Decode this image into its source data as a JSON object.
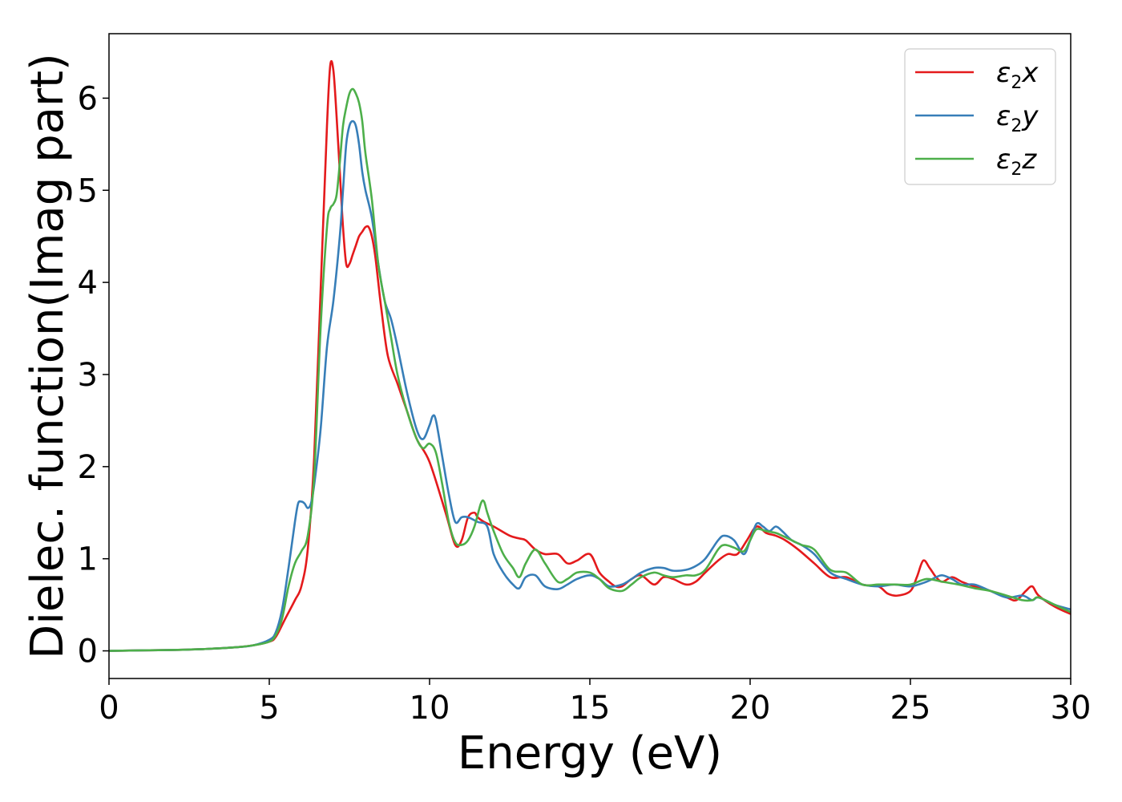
{
  "chart_data": {
    "type": "line",
    "xlabel": "Energy (eV)",
    "ylabel": "Dielec. function(Imag part)",
    "xlim": [
      0,
      30
    ],
    "ylim": [
      -0.3,
      6.7
    ],
    "xticks": [
      0,
      5,
      10,
      15,
      20,
      25,
      30
    ],
    "yticks": [
      0,
      1,
      2,
      3,
      4,
      5,
      6
    ],
    "grid": false,
    "legend_position": "top-right",
    "series": [
      {
        "key": "x",
        "legend": {
          "base": "ε",
          "sub": "2",
          "suffix": "x"
        },
        "color": "#e41a1c",
        "x": [
          0,
          1,
          2,
          3,
          4,
          4.5,
          5,
          5.2,
          5.5,
          5.8,
          6,
          6.2,
          6.4,
          6.6,
          6.8,
          6.9,
          7,
          7.1,
          7.2,
          7.3,
          7.4,
          7.5,
          7.6,
          7.7,
          7.8,
          7.9,
          8,
          8.1,
          8.2,
          8.3,
          8.4,
          8.5,
          8.7,
          9,
          9.3,
          9.6,
          10,
          10.5,
          10.8,
          11,
          11.2,
          11.4,
          11.5,
          11.7,
          12,
          12.5,
          12.8,
          13,
          13.3,
          13.6,
          14,
          14.3,
          14.6,
          15,
          15.3,
          15.6,
          15.8,
          16,
          16.3,
          16.6,
          17,
          17.3,
          17.6,
          18,
          18.3,
          18.6,
          19,
          19.3,
          19.6,
          19.9,
          20.2,
          20.5,
          20.8,
          21.1,
          21.5,
          22,
          22.5,
          23,
          23.5,
          24,
          24.3,
          24.6,
          25,
          25.2,
          25.4,
          25.6,
          25.8,
          26,
          26.3,
          26.6,
          27,
          27.5,
          28,
          28.3,
          28.6,
          28.8,
          29,
          29.5,
          30
        ],
        "y": [
          0,
          0.005,
          0.01,
          0.02,
          0.04,
          0.06,
          0.1,
          0.15,
          0.35,
          0.55,
          0.7,
          1.1,
          2.1,
          3.9,
          5.7,
          6.35,
          6.3,
          5.8,
          5.2,
          4.6,
          4.2,
          4.2,
          4.3,
          4.4,
          4.5,
          4.55,
          4.6,
          4.6,
          4.5,
          4.3,
          4,
          3.7,
          3.2,
          2.9,
          2.6,
          2.3,
          2.05,
          1.5,
          1.15,
          1.2,
          1.45,
          1.5,
          1.45,
          1.4,
          1.35,
          1.25,
          1.22,
          1.2,
          1.1,
          1.05,
          1.05,
          0.95,
          0.98,
          1.05,
          0.85,
          0.75,
          0.7,
          0.7,
          0.78,
          0.82,
          0.72,
          0.8,
          0.78,
          0.72,
          0.75,
          0.85,
          0.98,
          1.05,
          1.05,
          1.2,
          1.35,
          1.28,
          1.25,
          1.2,
          1.1,
          0.95,
          0.8,
          0.8,
          0.72,
          0.7,
          0.62,
          0.6,
          0.65,
          0.8,
          0.98,
          0.9,
          0.8,
          0.75,
          0.8,
          0.75,
          0.7,
          0.65,
          0.58,
          0.55,
          0.65,
          0.7,
          0.6,
          0.48,
          0.4
        ]
      },
      {
        "key": "y",
        "legend": {
          "base": "ε",
          "sub": "2",
          "suffix": "y"
        },
        "color": "#377eb8",
        "x": [
          0,
          1,
          2,
          3,
          4,
          4.5,
          5,
          5.2,
          5.4,
          5.6,
          5.8,
          5.9,
          6,
          6.1,
          6.2,
          6.3,
          6.4,
          6.6,
          6.8,
          7,
          7.2,
          7.3,
          7.4,
          7.5,
          7.6,
          7.7,
          7.8,
          7.9,
          8,
          8.2,
          8.4,
          8.6,
          8.8,
          9,
          9.3,
          9.6,
          9.8,
          10,
          10.1,
          10.2,
          10.4,
          10.6,
          10.8,
          11,
          11.2,
          11.5,
          11.8,
          12,
          12.3,
          12.6,
          12.8,
          13,
          13.3,
          13.6,
          14,
          14.3,
          14.6,
          15,
          15.3,
          15.6,
          16,
          16.3,
          16.6,
          17,
          17.3,
          17.6,
          18,
          18.3,
          18.6,
          19,
          19.2,
          19.5,
          19.8,
          20,
          20.2,
          20.4,
          20.6,
          20.8,
          21,
          21.3,
          21.6,
          22,
          22.5,
          23,
          23.5,
          24,
          24.5,
          25,
          25.5,
          25.8,
          26,
          26.3,
          26.6,
          27,
          27.5,
          28,
          28.5,
          28.8,
          29,
          29.5,
          30
        ],
        "y": [
          0,
          0.005,
          0.01,
          0.02,
          0.04,
          0.06,
          0.12,
          0.2,
          0.45,
          0.9,
          1.4,
          1.6,
          1.62,
          1.6,
          1.55,
          1.6,
          1.8,
          2.4,
          3.3,
          3.8,
          4.5,
          5,
          5.5,
          5.7,
          5.75,
          5.7,
          5.5,
          5.2,
          5,
          4.7,
          4.2,
          3.8,
          3.6,
          3.3,
          2.8,
          2.4,
          2.3,
          2.45,
          2.55,
          2.5,
          2.1,
          1.7,
          1.4,
          1.45,
          1.45,
          1.4,
          1.35,
          1.05,
          0.85,
          0.72,
          0.68,
          0.8,
          0.82,
          0.7,
          0.67,
          0.72,
          0.78,
          0.82,
          0.78,
          0.7,
          0.72,
          0.78,
          0.85,
          0.9,
          0.9,
          0.87,
          0.88,
          0.92,
          1,
          1.2,
          1.25,
          1.2,
          1.05,
          1.2,
          1.38,
          1.35,
          1.3,
          1.35,
          1.3,
          1.2,
          1.15,
          1.05,
          0.85,
          0.78,
          0.72,
          0.7,
          0.72,
          0.7,
          0.75,
          0.8,
          0.82,
          0.78,
          0.72,
          0.72,
          0.65,
          0.58,
          0.6,
          0.55,
          0.58,
          0.5,
          0.45
        ]
      },
      {
        "key": "z",
        "legend": {
          "base": "ε",
          "sub": "2",
          "suffix": "z"
        },
        "color": "#4daf4a",
        "x": [
          0,
          1,
          2,
          3,
          4,
          4.5,
          5,
          5.2,
          5.4,
          5.6,
          5.8,
          6,
          6.2,
          6.4,
          6.6,
          6.8,
          6.9,
          7,
          7.1,
          7.2,
          7.3,
          7.4,
          7.5,
          7.6,
          7.7,
          7.8,
          7.9,
          8,
          8.2,
          8.4,
          8.6,
          8.8,
          9,
          9.3,
          9.6,
          9.8,
          10,
          10.2,
          10.4,
          10.6,
          10.8,
          11,
          11.2,
          11.4,
          11.6,
          11.7,
          11.8,
          12,
          12.3,
          12.6,
          12.8,
          13,
          13.3,
          13.6,
          14,
          14.3,
          14.6,
          15,
          15.3,
          15.6,
          16,
          16.3,
          16.6,
          17,
          17.3,
          17.6,
          18,
          18.3,
          18.6,
          19,
          19.2,
          19.5,
          19.8,
          20,
          20.2,
          20.5,
          20.8,
          21,
          21.3,
          21.6,
          22,
          22.5,
          23,
          23.5,
          24,
          24.5,
          25,
          25.5,
          26,
          26.5,
          27,
          27.5,
          28,
          28.5,
          28.8,
          29,
          29.5,
          30
        ],
        "y": [
          0,
          0.005,
          0.01,
          0.02,
          0.04,
          0.06,
          0.1,
          0.17,
          0.35,
          0.7,
          0.95,
          1.08,
          1.25,
          1.9,
          3.5,
          4.6,
          4.8,
          4.85,
          4.95,
          5.3,
          5.7,
          5.9,
          6.05,
          6.1,
          6.05,
          5.95,
          5.75,
          5.4,
          4.9,
          4.2,
          3.8,
          3.4,
          3,
          2.6,
          2.3,
          2.2,
          2.25,
          2.15,
          1.8,
          1.4,
          1.18,
          1.15,
          1.2,
          1.35,
          1.6,
          1.62,
          1.5,
          1.3,
          1.05,
          0.9,
          0.8,
          0.95,
          1.1,
          0.95,
          0.75,
          0.78,
          0.85,
          0.85,
          0.78,
          0.68,
          0.65,
          0.72,
          0.8,
          0.85,
          0.82,
          0.8,
          0.82,
          0.82,
          0.88,
          1.1,
          1.15,
          1.12,
          1.08,
          1.2,
          1.32,
          1.3,
          1.28,
          1.25,
          1.2,
          1.15,
          1.1,
          0.88,
          0.85,
          0.72,
          0.72,
          0.72,
          0.72,
          0.78,
          0.75,
          0.72,
          0.68,
          0.65,
          0.6,
          0.55,
          0.55,
          0.58,
          0.5,
          0.42
        ]
      }
    ]
  }
}
